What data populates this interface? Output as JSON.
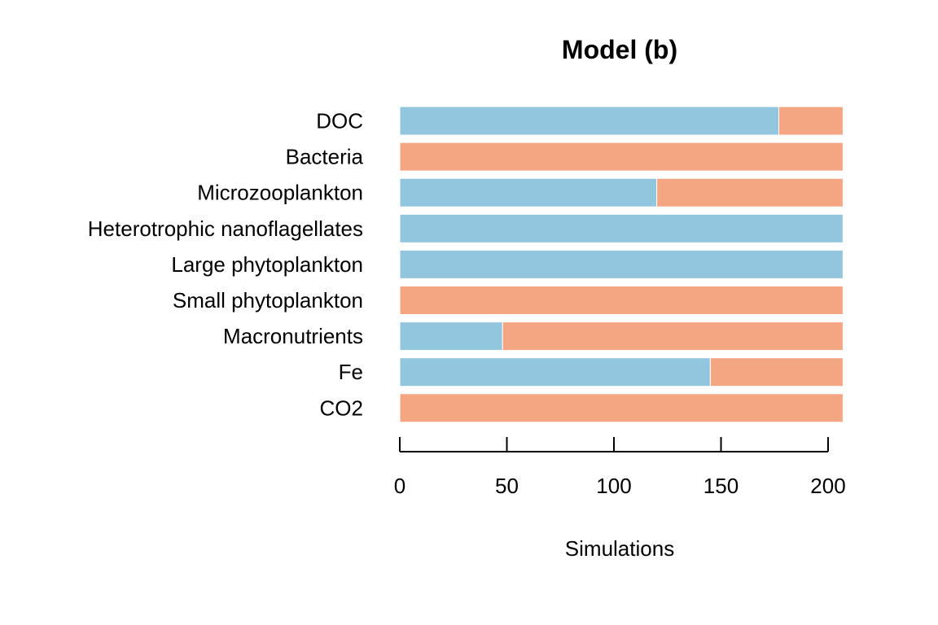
{
  "chart_data": {
    "type": "bar",
    "orientation": "horizontal",
    "stacked": true,
    "title": "Model (b)",
    "xlabel": "Simulations",
    "ylabel": "",
    "categories": [
      "DOC",
      "Bacteria",
      "Microzooplankton",
      "Heterotrophic nanoflagellates",
      "Large phytoplankton",
      "Small phytoplankton",
      "Macronutrients",
      "Fe",
      "CO2"
    ],
    "series": [
      {
        "color": "#92c5de",
        "values": [
          177,
          0,
          120,
          207,
          207,
          0,
          48,
          145,
          0
        ]
      },
      {
        "color": "#f4a582",
        "values": [
          30,
          207,
          87,
          0,
          0,
          207,
          159,
          62,
          207
        ]
      }
    ],
    "xlim": [
      0,
      207
    ],
    "xticks": [
      0,
      50,
      100,
      150,
      200
    ],
    "grid": false,
    "legend": "none"
  }
}
